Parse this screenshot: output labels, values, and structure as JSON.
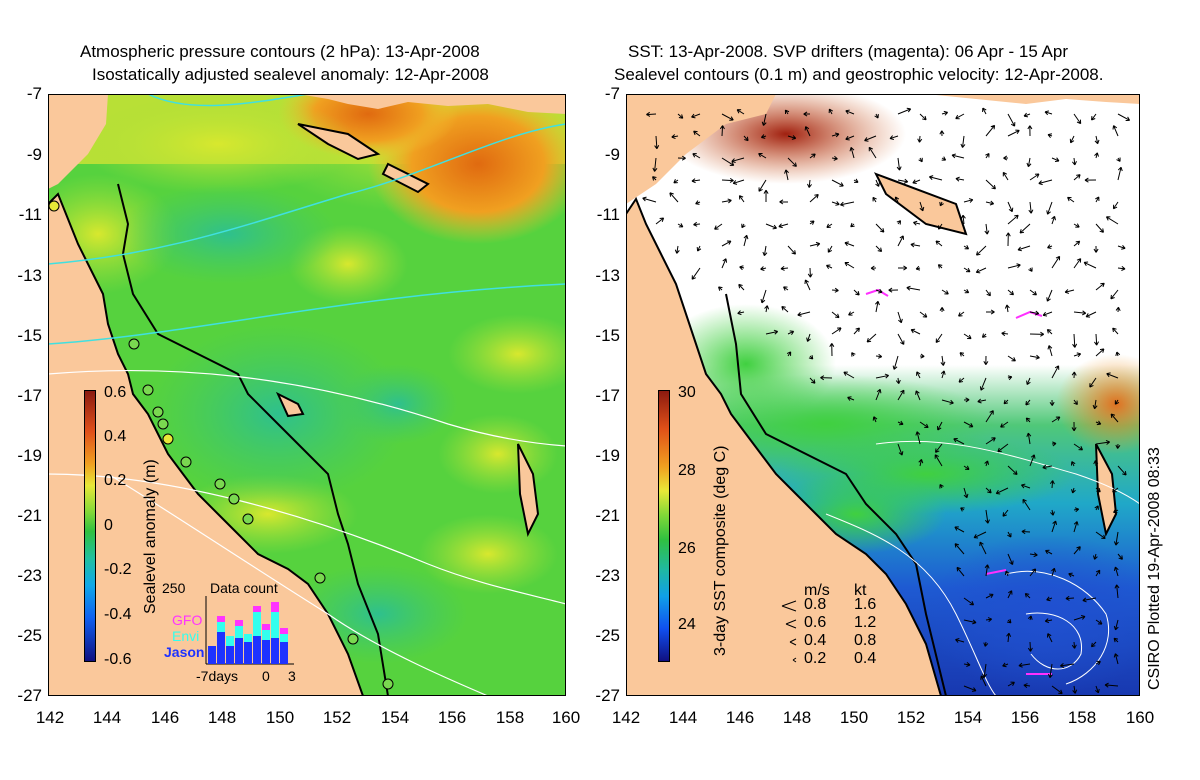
{
  "left_panel": {
    "title_line1": "Atmospheric pressure contours (2 hPa): 13-Apr-2008",
    "title_line2": "Isostatically adjusted sealevel anomaly: 12-Apr-2008",
    "colorbar": {
      "title": "Sealevel anomaly (m)",
      "labels": [
        "0.6",
        "0.4",
        "0.2",
        "0",
        "-0.2",
        "-0.4",
        "-0.6"
      ]
    },
    "inset": {
      "title": "Data count",
      "y_max": "250",
      "series": [
        "GFO",
        "Envi",
        "Jason"
      ],
      "series_colors": [
        "#ff33ff",
        "#33ffee",
        "#1e32ff"
      ],
      "x_labels": [
        "-7days",
        "0",
        "3"
      ]
    }
  },
  "right_panel": {
    "title_line1": "SST: 13-Apr-2008. SVP drifters (magenta): 06 Apr - 15 Apr",
    "title_line2": "Sealevel contours (0.1 m) and geostrophic velocity: 12-Apr-2008.",
    "colorbar": {
      "title": "3-day SST composite (deg C)",
      "labels": [
        "30",
        "28",
        "26",
        "24"
      ]
    },
    "velocity_legend": {
      "header_ms": "m/s",
      "header_kt": "kt",
      "rows": [
        {
          "ms": "0.8",
          "kt": "1.6"
        },
        {
          "ms": "0.6",
          "kt": "1.2"
        },
        {
          "ms": "0.4",
          "kt": "0.8"
        },
        {
          "ms": "0.2",
          "kt": "0.4"
        }
      ]
    },
    "credit": "CSIRO Plotted 19-Apr-2008 08:33"
  },
  "axes": {
    "y_labels": [
      "-7",
      "-9",
      "-11",
      "-13",
      "-15",
      "-17",
      "-19",
      "-21",
      "-23",
      "-25",
      "-27"
    ],
    "x_labels": [
      "142",
      "144",
      "146",
      "148",
      "150",
      "152",
      "154",
      "156",
      "158",
      "160"
    ]
  },
  "colors": {
    "land": "#fac89b",
    "ssh_green": "#52d23a",
    "ssh_yellow": "#d8e82e",
    "ssh_orange": "#f08c1a",
    "ssh_teal": "#2ec890",
    "sst_white": "#ffffff",
    "sst_blue": "#1e50d2"
  }
}
